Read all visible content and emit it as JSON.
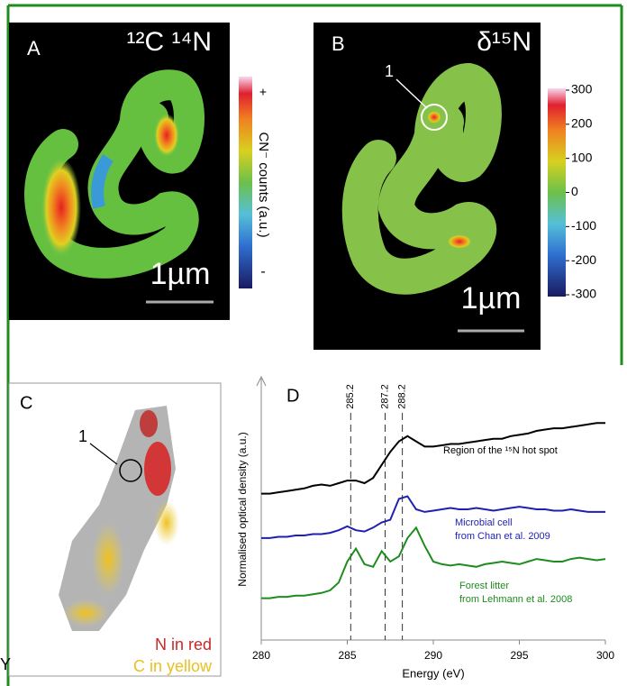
{
  "panels": {
    "a": {
      "label": "A",
      "title": "¹²C ¹⁴N",
      "scale_bar": "1µm",
      "colorbar": {
        "top": "+",
        "title": "CN⁻ counts (a.u.)",
        "bottom": "-"
      }
    },
    "b": {
      "label": "B",
      "title": "δ¹⁵N",
      "scale_bar": "1µm",
      "marker": "1",
      "colorbar": {
        "lim": [
          -300,
          300
        ],
        "ticks": [
          300,
          200,
          100,
          0,
          -100,
          -200,
          -300
        ]
      }
    },
    "c": {
      "label": "C",
      "marker": "1",
      "legend": [
        "N in red",
        "C in yellow"
      ]
    },
    "stray_text": "Y"
  },
  "chart_data": {
    "type": "line",
    "panel_label": "D",
    "xlabel": "Energy (eV)",
    "ylabel": "Normalised optical density (a.u.)",
    "xlim": [
      280,
      300
    ],
    "xticks": [
      280,
      285,
      290,
      295,
      300
    ],
    "ylim": [
      0,
      10
    ],
    "vlines": [
      285.2,
      287.2,
      288.2
    ],
    "x": [
      280,
      280.5,
      281,
      281.5,
      282,
      282.5,
      283,
      283.5,
      284,
      284.5,
      285,
      285.5,
      286,
      286.5,
      287,
      287.5,
      288,
      288.5,
      289,
      289.5,
      290,
      290.5,
      291,
      291.5,
      292,
      292.5,
      293,
      293.5,
      294,
      294.5,
      295,
      295.5,
      296,
      296.5,
      297,
      297.5,
      298,
      298.5,
      299,
      299.5,
      300
    ],
    "series": [
      {
        "color": "#000000",
        "values": [
          5.6,
          5.6,
          5.65,
          5.7,
          5.75,
          5.8,
          5.9,
          5.95,
          5.9,
          6.0,
          6.1,
          6.1,
          6.0,
          6.2,
          6.7,
          7.2,
          7.6,
          7.8,
          7.6,
          7.4,
          7.4,
          7.45,
          7.5,
          7.5,
          7.55,
          7.6,
          7.65,
          7.7,
          7.7,
          7.8,
          7.85,
          7.9,
          8.0,
          8.05,
          8.1,
          8.1,
          8.15,
          8.2,
          8.25,
          8.3,
          8.3
        ]
      },
      {
        "color": "#1f1fb4",
        "values": [
          3.9,
          3.9,
          3.95,
          3.95,
          4.0,
          4.0,
          4.05,
          4.05,
          4.1,
          4.2,
          4.35,
          4.2,
          4.15,
          4.3,
          4.5,
          4.6,
          5.4,
          5.5,
          5.0,
          4.9,
          4.95,
          5.0,
          5.05,
          5.0,
          5.0,
          5.05,
          5.0,
          4.95,
          5.0,
          5.05,
          5.1,
          5.05,
          5.0,
          5.0,
          4.95,
          4.95,
          5.0,
          4.95,
          4.9,
          4.9,
          4.9
        ]
      },
      {
        "color": "#1e8c1e",
        "values": [
          1.6,
          1.6,
          1.65,
          1.65,
          1.7,
          1.7,
          1.75,
          1.8,
          1.9,
          2.2,
          3.0,
          3.5,
          2.9,
          2.8,
          3.4,
          3.0,
          3.2,
          3.9,
          4.3,
          3.6,
          3.0,
          2.9,
          2.85,
          2.9,
          2.85,
          2.8,
          2.9,
          2.95,
          3.0,
          2.95,
          2.9,
          3.0,
          3.1,
          3.05,
          3.0,
          3.0,
          3.1,
          3.15,
          3.1,
          3.05,
          3.1
        ]
      }
    ],
    "annotations": [
      "Region of the ¹⁵N hot spot",
      "Microbial cell",
      "from Chan et al. 2009",
      "Forest litter",
      "from Lehmann et al. 2008"
    ]
  }
}
